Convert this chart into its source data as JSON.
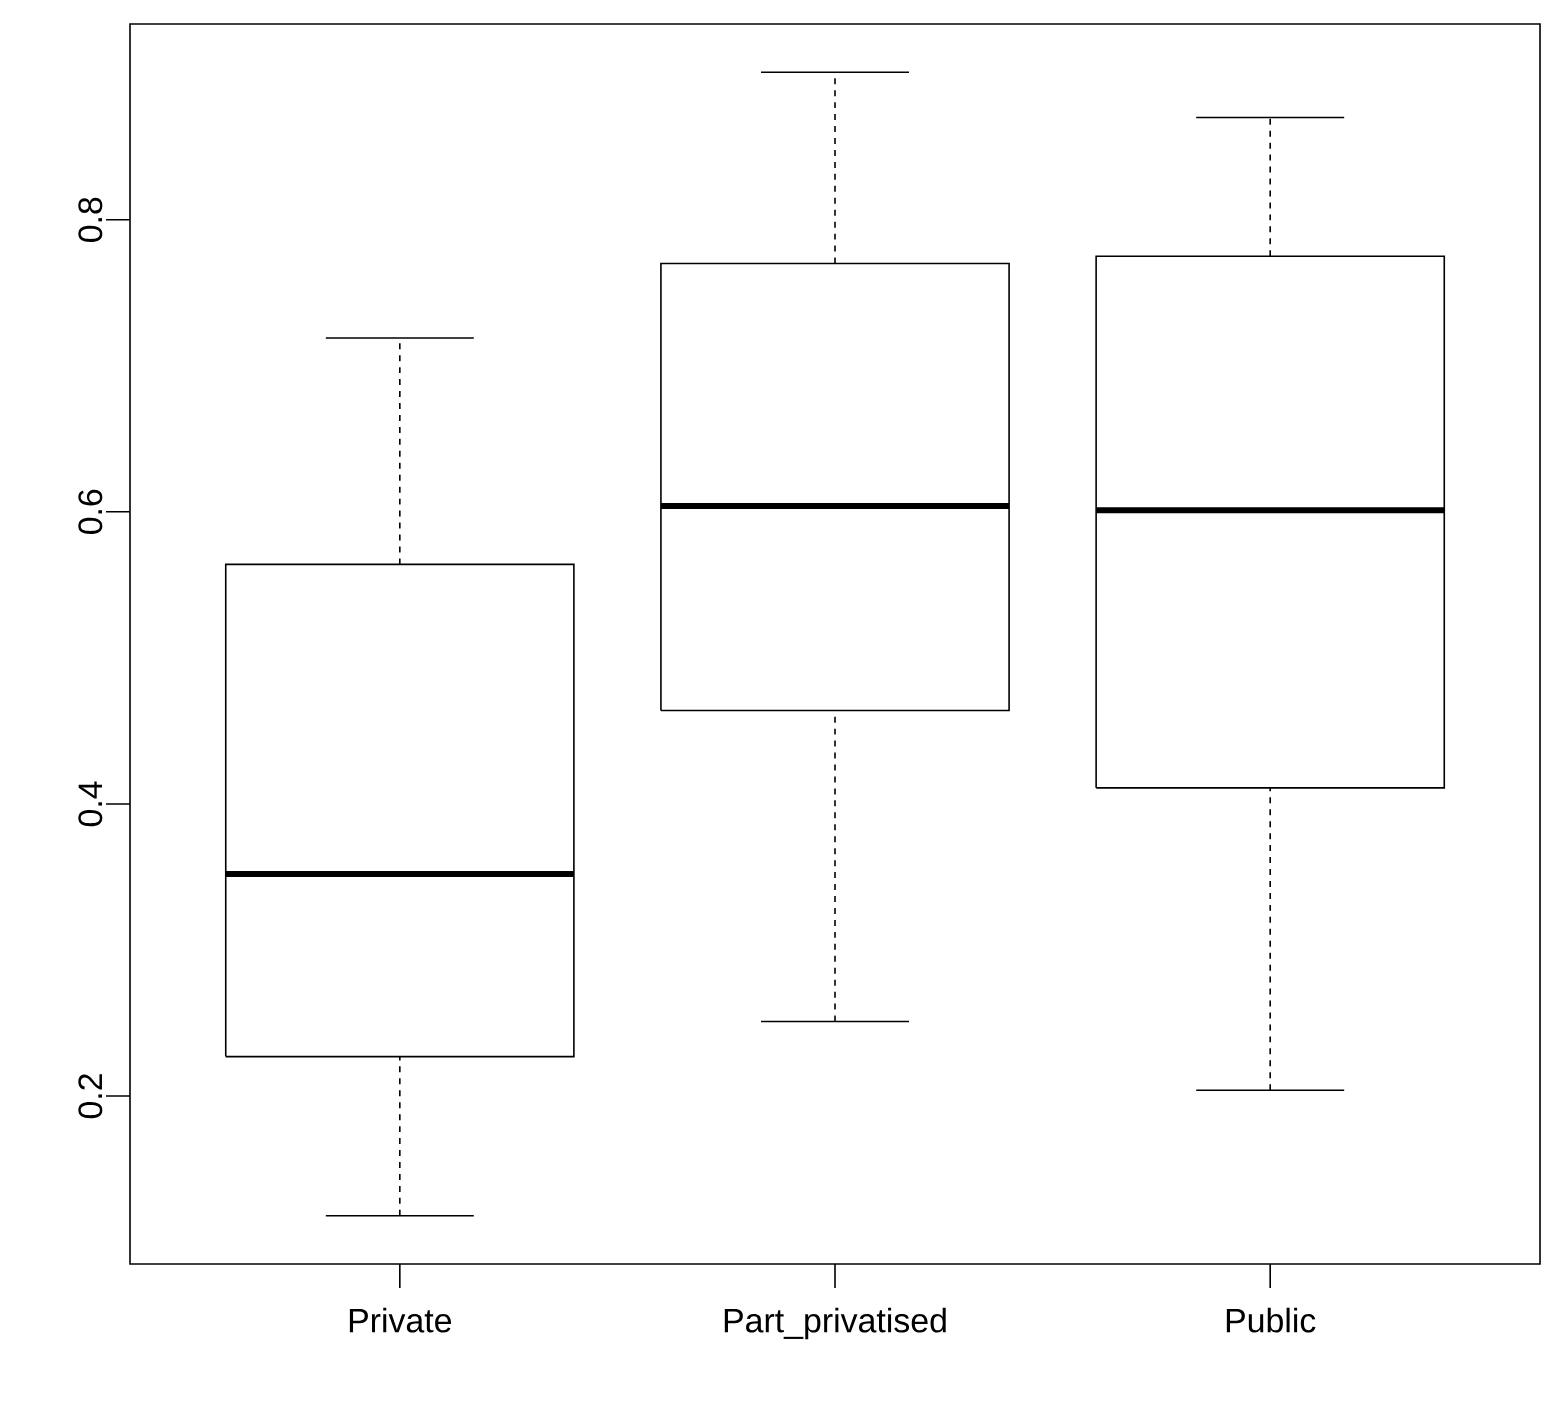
{
  "chart_data": {
    "type": "box",
    "categories": [
      "Private",
      "Part_privatised",
      "Public"
    ],
    "color": "#000000",
    "boxes": [
      {
        "low": 0.118,
        "q1": 0.227,
        "median": 0.352,
        "q3": 0.564,
        "high": 0.719
      },
      {
        "low": 0.251,
        "q1": 0.464,
        "median": 0.604,
        "q3": 0.77,
        "high": 0.901
      },
      {
        "low": 0.204,
        "q1": 0.411,
        "median": 0.601,
        "q3": 0.775,
        "high": 0.87
      }
    ],
    "ylim": [
      0.085,
      0.934
    ],
    "yticks": [
      0.2,
      0.4,
      0.6,
      0.8
    ]
  }
}
